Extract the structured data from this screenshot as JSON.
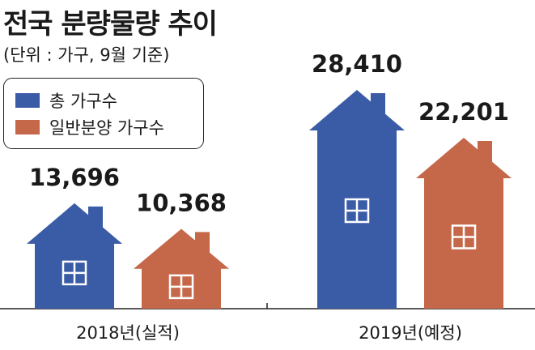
{
  "title": "전국 분량물량 추이",
  "unit_note": "(단위 : 가구, 9월 기준)",
  "colors": {
    "total": "#3a5ba6",
    "general": "#c5684a",
    "window": "#ffffff",
    "axis": "#222222"
  },
  "chart_data": {
    "type": "bar",
    "title": "전국 분량물량 추이",
    "categories": [
      "2018년(실적)",
      "2019년(예정)"
    ],
    "series": [
      {
        "name": "총 가구수",
        "values": [
          13696,
          28410
        ],
        "labels": [
          "13,696",
          "28,410"
        ]
      },
      {
        "name": "일반분양 가구수",
        "values": [
          10368,
          22201
        ],
        "labels": [
          "10,368",
          "22,201"
        ]
      }
    ],
    "ylim": [
      0,
      28410
    ],
    "grid": false,
    "legend_position": "top-left",
    "mark_shape": "house"
  }
}
